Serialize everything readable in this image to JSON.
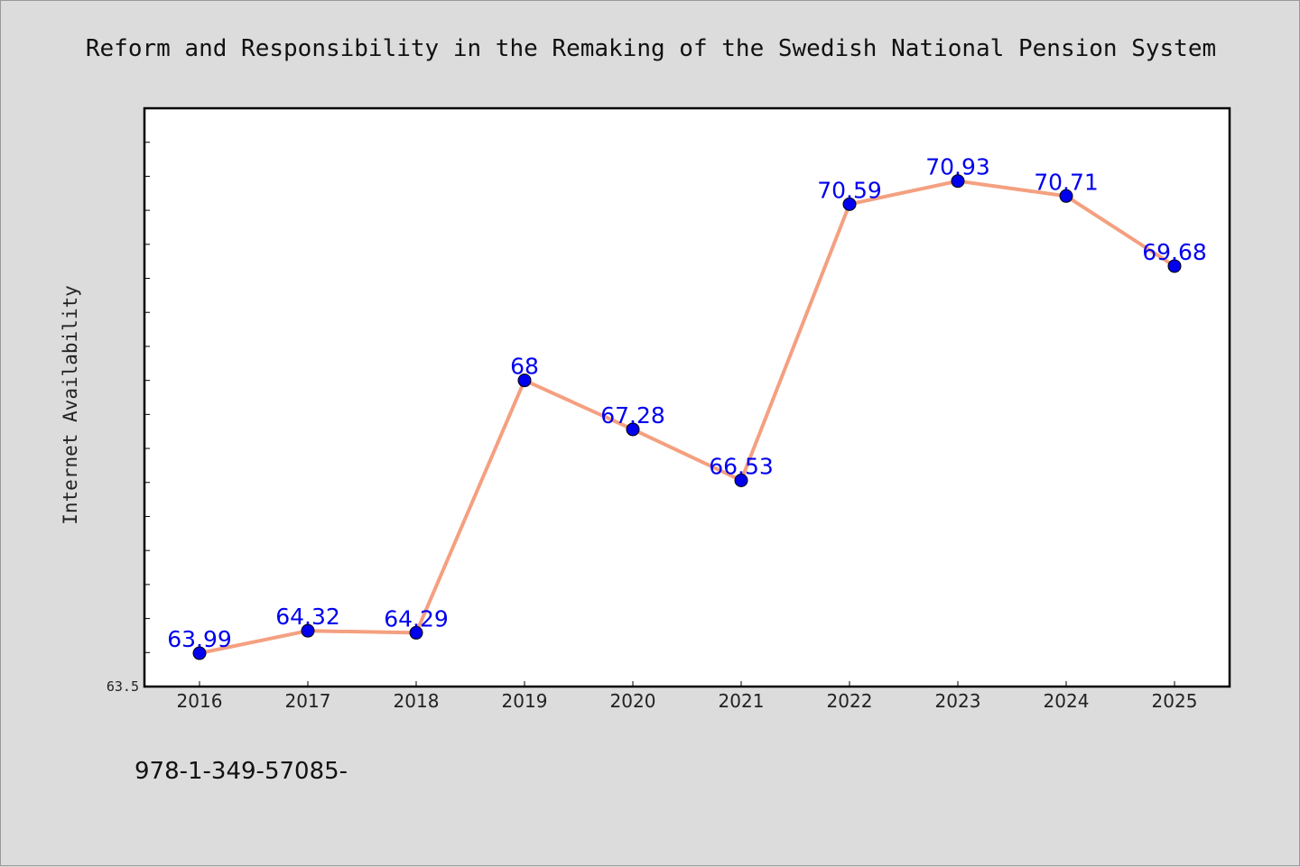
{
  "chart_data": {
    "type": "line",
    "title": "Reform and Responsibility in the Remaking of the Swedish National Pension System",
    "xlabel": "",
    "ylabel": "Internet Availability",
    "categories": [
      "2016",
      "2017",
      "2018",
      "2019",
      "2020",
      "2021",
      "2022",
      "2023",
      "2024",
      "2025"
    ],
    "values": [
      63.99,
      64.32,
      64.29,
      68,
      67.28,
      66.53,
      70.59,
      70.93,
      70.71,
      69.68
    ],
    "data_labels": [
      "63.99",
      "64.32",
      "64.29",
      "68",
      "67.28",
      "66.53",
      "70.59",
      "70.93",
      "70.71",
      "69.68"
    ],
    "ylim": [
      63.5,
      72.0
    ],
    "yticks_labeled": [
      "63.5"
    ],
    "grid": false,
    "line_color": "#f4a080",
    "marker_color": "#0000ee",
    "label_color": "#0000ee"
  },
  "footer": {
    "text": "978-1-349-57085-"
  }
}
